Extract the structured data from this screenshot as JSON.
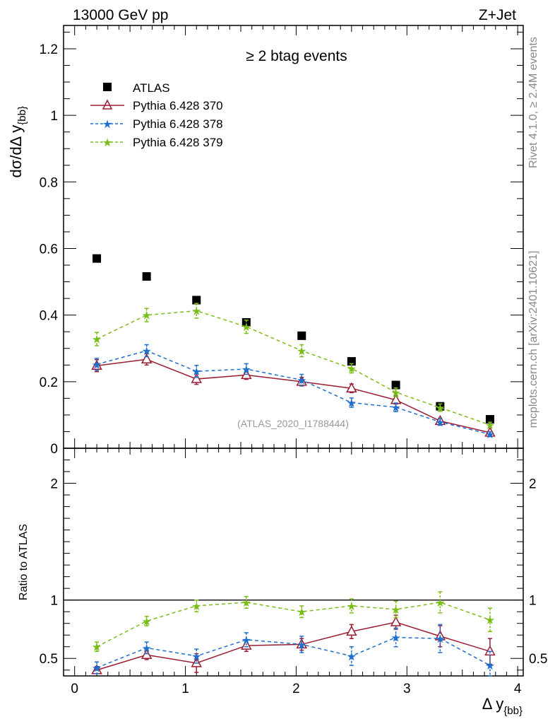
{
  "header": {
    "left": "13000 GeV pp",
    "right": "Z+Jet"
  },
  "side_text": {
    "rivet": "Rivet 4.1.0, ≥ 2.4M events",
    "mcplots": "mcplots.cern.ch [arXiv:2401.10621]"
  },
  "chart_data": [
    {
      "type": "scatter",
      "title": "≥ 2 btag events",
      "xlabel": "Δ y",
      "xlabel_sub": "{bb}",
      "ylabel": "dσ/dΔ y",
      "ylabel_sub": "{bb}",
      "watermark": "(ATLAS_2020_I1788444)",
      "xlim": [
        -0.1,
        4.05
      ],
      "ylim": [
        0,
        1.27
      ],
      "x_ticks": [
        0,
        1,
        2,
        3,
        4
      ],
      "x_tick_labels": [
        "0",
        "1",
        "2",
        "3",
        "4"
      ],
      "y_ticks": [
        0,
        0.2,
        0.4,
        0.6,
        0.8,
        1,
        1.2
      ],
      "y_tick_labels": [
        "0",
        "0.2",
        "0.4",
        "0.6",
        "0.8",
        "1",
        "1.2"
      ],
      "x": [
        0.2,
        0.65,
        1.1,
        1.55,
        2.05,
        2.5,
        2.9,
        3.3,
        3.75
      ],
      "series": [
        {
          "name": "ATLAS",
          "color": "#000000",
          "marker": "square",
          "values": [
            0.57,
            0.516,
            0.445,
            0.378,
            0.338,
            0.261,
            0.19,
            0.126,
            0.087
          ]
        },
        {
          "name": "Pythia 6.428 370",
          "color": "#9b1b30",
          "marker": "triangle",
          "dash": "solid",
          "values": [
            0.248,
            0.267,
            0.208,
            0.22,
            0.2,
            0.18,
            0.145,
            0.082,
            0.047
          ],
          "errors": [
            0.018,
            0.017,
            0.016,
            0.013,
            0.013,
            0.013,
            0.012,
            0.008,
            0.005
          ]
        },
        {
          "name": "Pythia 6.428 378",
          "color": "#1f6fce",
          "marker": "star",
          "dash": "dashed",
          "values": [
            0.252,
            0.293,
            0.231,
            0.238,
            0.205,
            0.137,
            0.123,
            0.079,
            0.042
          ],
          "errors": [
            0.018,
            0.018,
            0.018,
            0.016,
            0.017,
            0.014,
            0.013,
            0.01,
            0.007
          ]
        },
        {
          "name": "Pythia 6.428 379",
          "color": "#7bbd18",
          "marker": "star",
          "dash": "dashed",
          "values": [
            0.328,
            0.4,
            0.413,
            0.365,
            0.293,
            0.24,
            0.168,
            0.122,
            0.07
          ],
          "errors": [
            0.02,
            0.02,
            0.022,
            0.02,
            0.018,
            0.014,
            0.013,
            0.011,
            0.008
          ]
        }
      ]
    },
    {
      "type": "scatter",
      "ylabel": "Ratio to ATLAS",
      "xlim": [
        -0.1,
        4.05
      ],
      "ylim": [
        0.35,
        2.3
      ],
      "y_ticks": [
        0.5,
        1,
        2
      ],
      "y_tick_labels": [
        "0.5",
        "1",
        "2"
      ],
      "reference_line": 1,
      "x": [
        0.2,
        0.65,
        1.1,
        1.55,
        2.05,
        2.5,
        2.9,
        3.3,
        3.75
      ],
      "series": [
        {
          "name": "Pythia 6.428 370",
          "color": "#9b1b30",
          "marker": "triangle",
          "dash": "solid",
          "values": [
            0.4,
            0.53,
            0.46,
            0.61,
            0.62,
            0.73,
            0.81,
            0.69,
            0.56
          ],
          "errors": [
            0.03,
            0.04,
            0.08,
            0.05,
            0.05,
            0.06,
            0.06,
            0.09,
            0.11
          ]
        },
        {
          "name": "Pythia 6.428 378",
          "color": "#1f6fce",
          "marker": "star",
          "dash": "dashed",
          "values": [
            0.42,
            0.59,
            0.52,
            0.66,
            0.62,
            0.52,
            0.68,
            0.67,
            0.44
          ],
          "errors": [
            0.05,
            0.05,
            0.06,
            0.06,
            0.07,
            0.08,
            0.08,
            0.12,
            0.12
          ]
        },
        {
          "name": "Pythia 6.428 379",
          "color": "#7bbd18",
          "marker": "star",
          "dash": "dashed",
          "values": [
            0.6,
            0.82,
            0.95,
            0.98,
            0.9,
            0.95,
            0.92,
            0.98,
            0.83
          ],
          "errors": [
            0.04,
            0.04,
            0.05,
            0.05,
            0.05,
            0.06,
            0.07,
            0.09,
            0.1
          ]
        }
      ]
    }
  ]
}
